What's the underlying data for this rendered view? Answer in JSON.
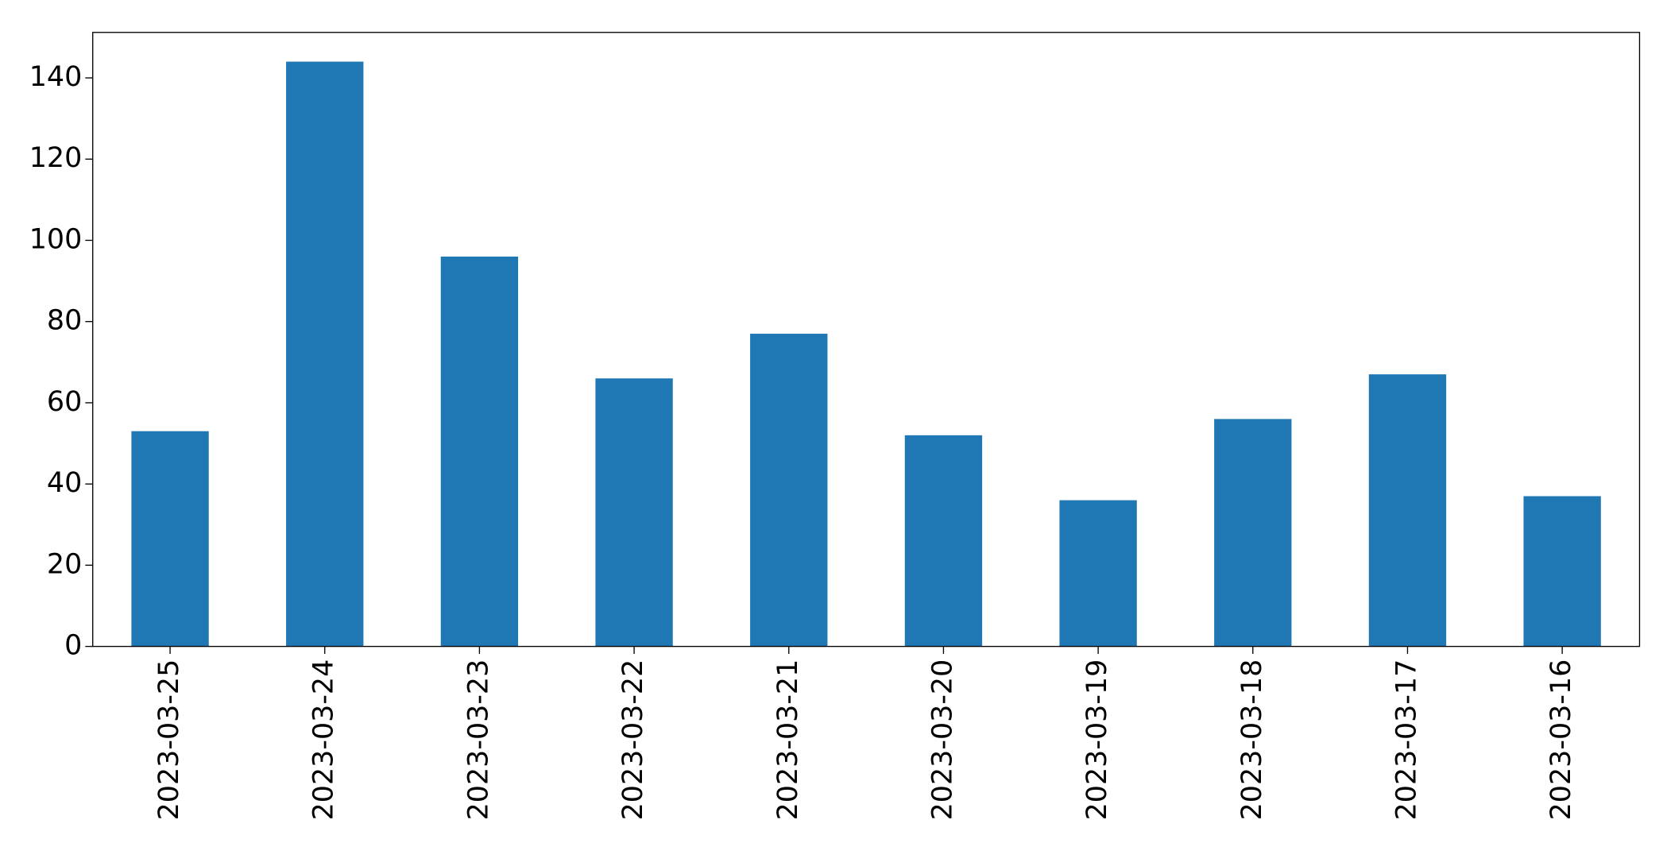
{
  "chart_data": {
    "type": "bar",
    "categories": [
      "2023-03-25",
      "2023-03-24",
      "2023-03-23",
      "2023-03-22",
      "2023-03-21",
      "2023-03-20",
      "2023-03-19",
      "2023-03-18",
      "2023-03-17",
      "2023-03-16"
    ],
    "values": [
      53,
      144,
      96,
      66,
      77,
      52,
      36,
      56,
      67,
      37
    ],
    "color": "#1f77b4",
    "ylim": [
      0,
      151.2
    ],
    "yticks": [
      0,
      20,
      40,
      60,
      80,
      100,
      120,
      140
    ],
    "grid": false
  }
}
